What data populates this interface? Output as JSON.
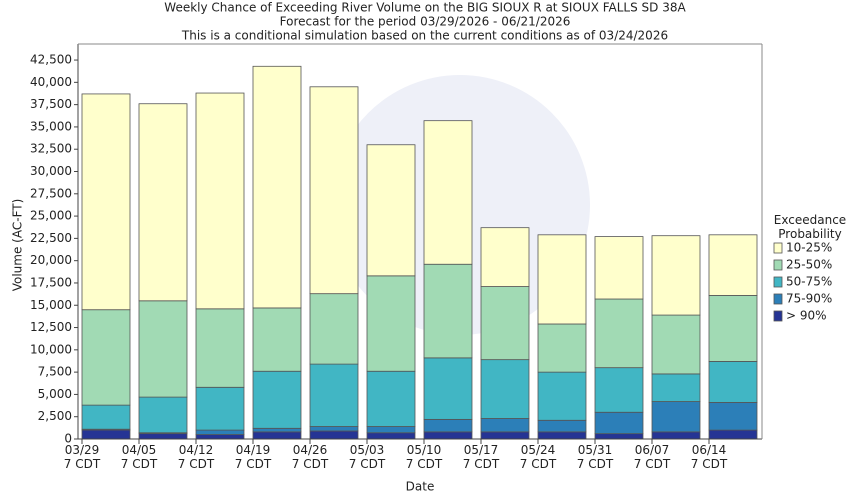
{
  "chart_data": {
    "type": "stacked_bar",
    "title": "Weekly Chance of Exceeding River Volume on the BIG SIOUX R at SIOUX FALLS SD 38A",
    "subtitle": "Forecast for the period 03/29/2026 - 06/21/2026",
    "note": "This is a conditional simulation based on the current conditions as of 03/24/2026",
    "x_label": "Date",
    "y_label": "Volume (AC-FT)",
    "legend_title": "Exceedance Probability",
    "categories": [
      "03/29 7 CDT",
      "04/05 7 CDT",
      "04/12 7 CDT",
      "04/19 7 CDT",
      "04/26 7 CDT",
      "05/03 7 CDT",
      "05/10 7 CDT",
      "05/17 7 CDT",
      "05/24 7 CDT",
      "05/31 7 CDT",
      "06/07 7 CDT",
      "06/14 7 CDT"
    ],
    "series": [
      {
        "name": "> 90%",
        "color": "#253494",
        "values": [
          1000,
          600,
          500,
          800,
          900,
          700,
          800,
          800,
          800,
          600,
          800,
          1000
        ]
      },
      {
        "name": "75-90%",
        "color": "#2c7fb8",
        "values": [
          100,
          100,
          500,
          400,
          500,
          700,
          1400,
          1500,
          1300,
          2400,
          3400,
          3100
        ]
      },
      {
        "name": "50-75%",
        "color": "#41b6c4",
        "values": [
          2700,
          4000,
          4800,
          6400,
          7000,
          6200,
          6900,
          6600,
          5400,
          5000,
          3100,
          4600
        ]
      },
      {
        "name": "25-50%",
        "color": "#a1dab4",
        "values": [
          10700,
          10800,
          8800,
          7100,
          7900,
          10700,
          10500,
          8200,
          5400,
          7700,
          6600,
          7400
        ]
      },
      {
        "name": "10-25%",
        "color": "#ffffcc",
        "values": [
          24200,
          22100,
          24200,
          27100,
          23200,
          14700,
          16100,
          6600,
          10000,
          7000,
          8900,
          6800
        ]
      }
    ],
    "ylim": [
      0,
      44300
    ],
    "yticks": [
      0,
      {
        "value": 2500,
        "label": "2,500"
      },
      {
        "value": 5000,
        "label": "5,000"
      },
      {
        "value": 7500,
        "label": "7,500"
      },
      {
        "value": 10000,
        "label": "10,000"
      },
      {
        "value": 12500,
        "label": "12,500"
      },
      {
        "value": 15000,
        "label": "15,000"
      },
      {
        "value": 17500,
        "label": "17,500"
      },
      {
        "value": 20000,
        "label": "20,000"
      },
      {
        "value": 22500,
        "label": "22,500"
      },
      {
        "value": 25000,
        "label": "25,000"
      },
      {
        "value": 27500,
        "label": "27,500"
      },
      {
        "value": 30000,
        "label": "30,000"
      },
      {
        "value": 32500,
        "label": "32,500"
      },
      {
        "value": 35000,
        "label": "35,000"
      },
      {
        "value": 37500,
        "label": "37,500"
      },
      {
        "value": 40000,
        "label": "40,000"
      },
      {
        "value": 42500,
        "label": "42,500"
      }
    ],
    "grid": false,
    "legend": "right"
  }
}
